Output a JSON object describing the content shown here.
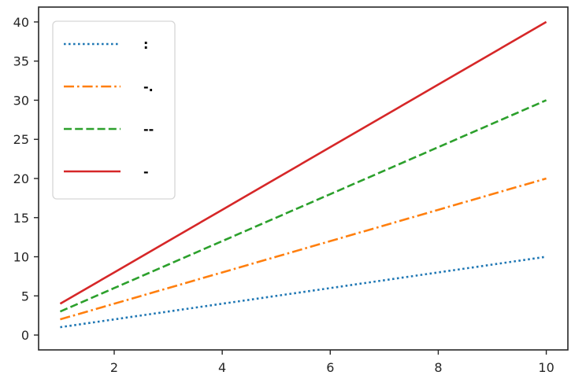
{
  "chart_data": {
    "type": "line",
    "title": "",
    "xlabel": "",
    "ylabel": "",
    "xlim": [
      0.6,
      10.4
    ],
    "ylim": [
      -1.9,
      41.9
    ],
    "xticks": [
      2,
      4,
      6,
      8,
      10
    ],
    "yticks": [
      0,
      5,
      10,
      15,
      20,
      25,
      30,
      35,
      40
    ],
    "grid": false,
    "legend_position": "upper-left",
    "x": [
      1,
      2,
      3,
      4,
      5,
      6,
      7,
      8,
      9,
      10
    ],
    "series": [
      {
        "name": ":",
        "linestyle": "dotted",
        "color": "#1f77b4",
        "values": [
          1,
          2,
          3,
          4,
          5,
          6,
          7,
          8,
          9,
          10
        ]
      },
      {
        "name": "-.",
        "linestyle": "dashdot",
        "color": "#ff7f0e",
        "values": [
          2,
          4,
          6,
          8,
          10,
          12,
          14,
          16,
          18,
          20
        ]
      },
      {
        "name": "--",
        "linestyle": "dashed",
        "color": "#2ca02c",
        "values": [
          3,
          6,
          9,
          12,
          15,
          18,
          21,
          24,
          27,
          30
        ]
      },
      {
        "name": "-",
        "linestyle": "solid",
        "color": "#d62728",
        "values": [
          4,
          8,
          12,
          16,
          20,
          24,
          28,
          32,
          36,
          40
        ]
      }
    ]
  }
}
